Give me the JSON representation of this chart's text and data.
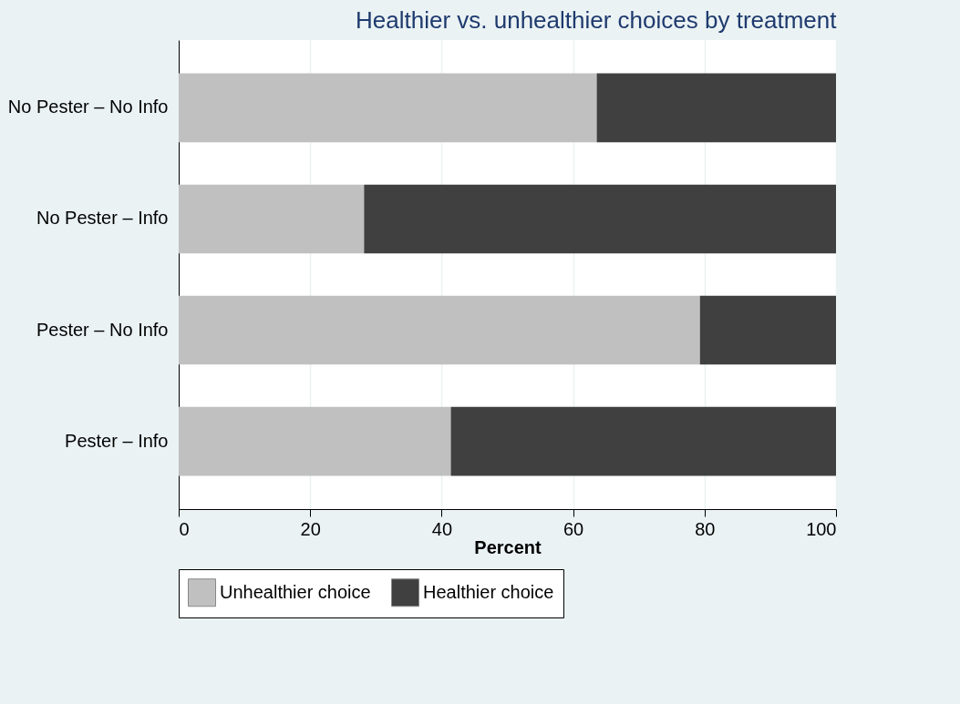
{
  "chart_data": {
    "type": "bar",
    "orientation": "horizontal",
    "stacked": true,
    "title": "Healthier vs. unhealthier choices by treatment",
    "xlabel": "Percent",
    "categories": [
      "No Pester – No Info",
      "No Pester – Info",
      "Pester – No Info",
      "Pester – Info"
    ],
    "series": [
      {
        "name": "Unhealthier choice",
        "color": "#c0c0c0",
        "values": [
          63.6,
          28.2,
          79.3,
          41.4
        ]
      },
      {
        "name": "Healthier choice",
        "color": "#404040",
        "values": [
          36.4,
          71.8,
          20.7,
          58.6
        ]
      }
    ],
    "xlim": [
      0,
      100
    ],
    "xticks": [
      0,
      20,
      40,
      60,
      80,
      100
    ],
    "grid": "x",
    "legend": "bottom"
  }
}
